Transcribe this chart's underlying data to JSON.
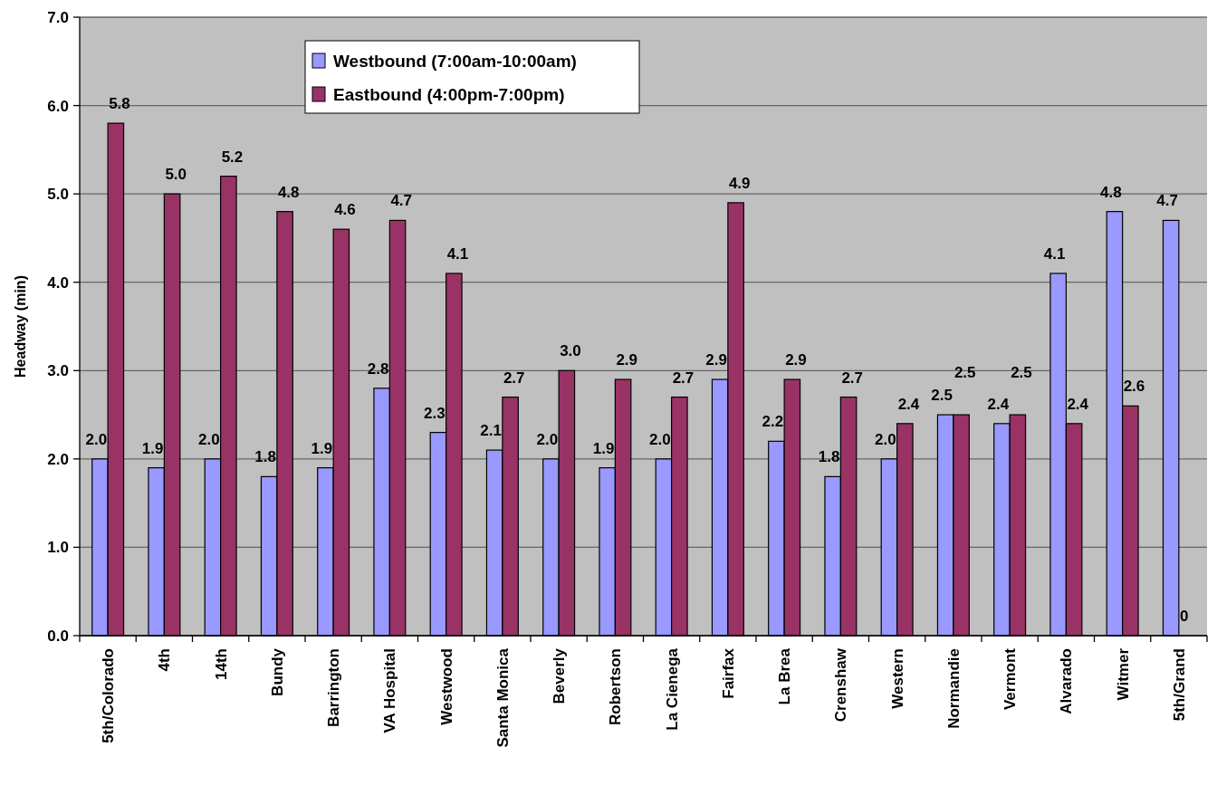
{
  "chart_data": {
    "type": "bar",
    "ylabel": "Headway (min)",
    "categories": [
      "5th/Colorado",
      "4th",
      "14th",
      "Bundy",
      "Barrington",
      "VA Hospital",
      "Westwood",
      "Santa Monica",
      "Beverly",
      "Robertson",
      "La Cienega",
      "Fairfax",
      "La Brea",
      "Crenshaw",
      "Western",
      "Normandie",
      "Vermont",
      "Alvarado",
      "Witmer",
      "5th/Grand"
    ],
    "series": [
      {
        "name": "Westbound (7:00am-10:00am)",
        "color": "#9999ff",
        "values": [
          2.0,
          1.9,
          2.0,
          1.8,
          1.9,
          2.8,
          2.3,
          2.1,
          2.0,
          1.9,
          2.0,
          2.9,
          2.2,
          1.8,
          2.0,
          2.5,
          2.4,
          4.1,
          4.8,
          4.7
        ],
        "value_labels": [
          "2.0",
          "1.9",
          "2.0",
          "1.8",
          "1.9",
          "2.8",
          "2.3",
          "2.1",
          "2.0",
          "1.9",
          "2.0",
          "2.9",
          "2.2",
          "1.8",
          "2.0",
          "2.5",
          "2.4",
          "4.1",
          "4.8",
          "4.7"
        ]
      },
      {
        "name": "Eastbound (4:00pm-7:00pm)",
        "color": "#993366",
        "values": [
          5.8,
          5.0,
          5.2,
          4.8,
          4.6,
          4.7,
          4.1,
          2.7,
          3.0,
          2.9,
          2.7,
          4.9,
          2.9,
          2.7,
          2.4,
          2.5,
          2.5,
          2.4,
          2.6,
          0
        ],
        "value_labels": [
          "5.8",
          "5.0",
          "5.2",
          "4.8",
          "4.6",
          "4.7",
          "4.1",
          "2.7",
          "3.0",
          "2.9",
          "2.7",
          "4.9",
          "2.9",
          "2.7",
          "2.4",
          "2.5",
          "2.5",
          "2.4",
          "2.6",
          "0"
        ]
      }
    ],
    "ylim": [
      0,
      7
    ],
    "yticks": [
      {
        "value": 0,
        "label": "0.0"
      },
      {
        "value": 1,
        "label": "1.0"
      },
      {
        "value": 2,
        "label": "2.0"
      },
      {
        "value": 3,
        "label": "3.0"
      },
      {
        "value": 4,
        "label": "4.0"
      },
      {
        "value": 5,
        "label": "5.0"
      },
      {
        "value": 6,
        "label": "6.0"
      },
      {
        "value": 7,
        "label": "7.0"
      }
    ],
    "grid": "y",
    "legend": "top left"
  }
}
